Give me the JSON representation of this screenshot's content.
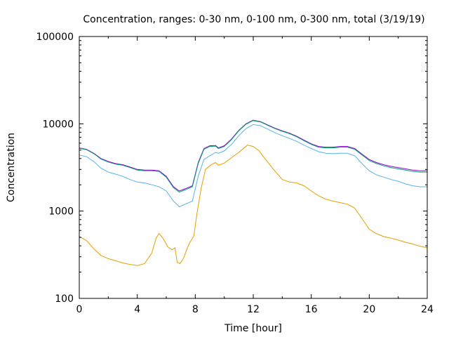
{
  "chart_data": {
    "type": "line",
    "title": "Concentration, ranges: 0-30 nm, 0-100 nm, 0-300 nm, total (3/19/19)",
    "xlabel": "Time [hour]",
    "ylabel": "Concentration",
    "xlim": [
      0,
      24
    ],
    "ylim": [
      100,
      100000
    ],
    "yscale": "log",
    "grid": false,
    "legend": "none",
    "xticks": [
      0,
      4,
      8,
      12,
      16,
      20,
      24
    ],
    "xtick_labels": [
      "0",
      "4",
      "8",
      "12",
      "16",
      "20",
      "24"
    ],
    "yticks": [
      100,
      1000,
      10000,
      100000
    ],
    "ytick_labels": [
      "100",
      "1000",
      "10000",
      "100000"
    ],
    "series": [
      {
        "color": "#e69f00",
        "points": [
          [
            0,
            510
          ],
          [
            0.5,
            460
          ],
          [
            1,
            370
          ],
          [
            1.5,
            310
          ],
          [
            2,
            285
          ],
          [
            2.5,
            270
          ],
          [
            3,
            255
          ],
          [
            3.5,
            245
          ],
          [
            4,
            238
          ],
          [
            4.5,
            250
          ],
          [
            5,
            330
          ],
          [
            5.3,
            490
          ],
          [
            5.5,
            555
          ],
          [
            5.8,
            480
          ],
          [
            6.1,
            390
          ],
          [
            6.4,
            360
          ],
          [
            6.6,
            380
          ],
          [
            6.75,
            260
          ],
          [
            6.95,
            250
          ],
          [
            7.2,
            290
          ],
          [
            7.4,
            360
          ],
          [
            7.6,
            430
          ],
          [
            7.9,
            520
          ],
          [
            8.1,
            900
          ],
          [
            8.4,
            1800
          ],
          [
            8.7,
            3000
          ],
          [
            9.1,
            3400
          ],
          [
            9.4,
            3600
          ],
          [
            9.6,
            3350
          ],
          [
            10,
            3550
          ],
          [
            10.5,
            4100
          ],
          [
            11,
            4700
          ],
          [
            11.6,
            5700
          ],
          [
            12,
            5500
          ],
          [
            12.4,
            4900
          ],
          [
            12.8,
            4000
          ],
          [
            13.4,
            3000
          ],
          [
            14,
            2300
          ],
          [
            14.5,
            2150
          ],
          [
            15,
            2100
          ],
          [
            15.5,
            1950
          ],
          [
            16,
            1700
          ],
          [
            16.5,
            1500
          ],
          [
            17,
            1370
          ],
          [
            17.5,
            1300
          ],
          [
            18,
            1250
          ],
          [
            18.5,
            1200
          ],
          [
            19,
            1080
          ],
          [
            19.5,
            820
          ],
          [
            20,
            620
          ],
          [
            20.5,
            550
          ],
          [
            21,
            510
          ],
          [
            21.5,
            490
          ],
          [
            22,
            465
          ],
          [
            22.5,
            440
          ],
          [
            23,
            420
          ],
          [
            23.5,
            395
          ],
          [
            24,
            380
          ]
        ]
      },
      {
        "color": "#56b4e9",
        "points": [
          [
            0,
            4400
          ],
          [
            0.5,
            4200
          ],
          [
            1,
            3700
          ],
          [
            1.5,
            3100
          ],
          [
            2,
            2800
          ],
          [
            2.5,
            2650
          ],
          [
            3,
            2500
          ],
          [
            3.5,
            2300
          ],
          [
            4,
            2150
          ],
          [
            4.5,
            2100
          ],
          [
            5,
            2000
          ],
          [
            5.5,
            1900
          ],
          [
            6,
            1700
          ],
          [
            6.5,
            1300
          ],
          [
            6.9,
            1120
          ],
          [
            7.3,
            1200
          ],
          [
            7.8,
            1300
          ],
          [
            8.2,
            2500
          ],
          [
            8.6,
            3900
          ],
          [
            9,
            4300
          ],
          [
            9.4,
            4700
          ],
          [
            9.6,
            4600
          ],
          [
            10,
            4900
          ],
          [
            10.5,
            5800
          ],
          [
            11,
            7300
          ],
          [
            11.5,
            8800
          ],
          [
            12,
            9800
          ],
          [
            12.5,
            9500
          ],
          [
            13,
            8700
          ],
          [
            13.5,
            7900
          ],
          [
            14,
            7300
          ],
          [
            14.5,
            6800
          ],
          [
            15,
            6300
          ],
          [
            15.5,
            5700
          ],
          [
            16,
            5200
          ],
          [
            16.5,
            4800
          ],
          [
            17,
            4600
          ],
          [
            17.5,
            4550
          ],
          [
            18,
            4600
          ],
          [
            18.5,
            4600
          ],
          [
            19,
            4300
          ],
          [
            19.5,
            3500
          ],
          [
            20,
            2900
          ],
          [
            20.5,
            2600
          ],
          [
            21,
            2450
          ],
          [
            21.5,
            2300
          ],
          [
            22,
            2200
          ],
          [
            22.5,
            2050
          ],
          [
            23,
            1950
          ],
          [
            23.5,
            1900
          ],
          [
            24,
            1900
          ]
        ]
      },
      {
        "color": "#9400d3",
        "points": [
          [
            0,
            5300
          ],
          [
            0.5,
            5100
          ],
          [
            1,
            4600
          ],
          [
            1.5,
            4000
          ],
          [
            2,
            3700
          ],
          [
            2.5,
            3500
          ],
          [
            3,
            3400
          ],
          [
            3.5,
            3200
          ],
          [
            4,
            3000
          ],
          [
            4.5,
            2950
          ],
          [
            5,
            2950
          ],
          [
            5.5,
            2900
          ],
          [
            6,
            2500
          ],
          [
            6.5,
            1900
          ],
          [
            6.9,
            1700
          ],
          [
            7.3,
            1800
          ],
          [
            7.8,
            1950
          ],
          [
            8.2,
            3600
          ],
          [
            8.6,
            5200
          ],
          [
            9,
            5600
          ],
          [
            9.4,
            5650
          ],
          [
            9.6,
            5300
          ],
          [
            10,
            5600
          ],
          [
            10.5,
            6700
          ],
          [
            11,
            8400
          ],
          [
            11.5,
            10000
          ],
          [
            12,
            11000
          ],
          [
            12.5,
            10600
          ],
          [
            13,
            9700
          ],
          [
            13.5,
            8900
          ],
          [
            14,
            8300
          ],
          [
            14.5,
            7800
          ],
          [
            15,
            7200
          ],
          [
            15.5,
            6500
          ],
          [
            16,
            5900
          ],
          [
            16.5,
            5500
          ],
          [
            17,
            5400
          ],
          [
            17.5,
            5400
          ],
          [
            18,
            5500
          ],
          [
            18.5,
            5500
          ],
          [
            19,
            5200
          ],
          [
            19.5,
            4500
          ],
          [
            20,
            3900
          ],
          [
            20.5,
            3600
          ],
          [
            21,
            3400
          ],
          [
            21.5,
            3250
          ],
          [
            22,
            3150
          ],
          [
            22.5,
            3050
          ],
          [
            23,
            2950
          ],
          [
            23.5,
            2900
          ],
          [
            24,
            2900
          ]
        ]
      },
      {
        "color": "#009e73",
        "points": [
          [
            0,
            5250
          ],
          [
            0.5,
            5050
          ],
          [
            1,
            4550
          ],
          [
            1.5,
            3950
          ],
          [
            2,
            3650
          ],
          [
            2.5,
            3450
          ],
          [
            3,
            3350
          ],
          [
            3.5,
            3150
          ],
          [
            4,
            2950
          ],
          [
            4.5,
            2900
          ],
          [
            5,
            2900
          ],
          [
            5.5,
            2850
          ],
          [
            6,
            2450
          ],
          [
            6.5,
            1850
          ],
          [
            6.9,
            1650
          ],
          [
            7.3,
            1750
          ],
          [
            7.8,
            1900
          ],
          [
            8.2,
            3500
          ],
          [
            8.6,
            5100
          ],
          [
            9,
            5500
          ],
          [
            9.4,
            5550
          ],
          [
            9.6,
            5200
          ],
          [
            10,
            5500
          ],
          [
            10.5,
            6600
          ],
          [
            11,
            8300
          ],
          [
            11.5,
            9900
          ],
          [
            12,
            10900
          ],
          [
            12.5,
            10500
          ],
          [
            13,
            9600
          ],
          [
            13.5,
            8800
          ],
          [
            14,
            8200
          ],
          [
            14.5,
            7700
          ],
          [
            15,
            7100
          ],
          [
            15.5,
            6400
          ],
          [
            16,
            5800
          ],
          [
            16.5,
            5400
          ],
          [
            17,
            5300
          ],
          [
            17.5,
            5300
          ],
          [
            18,
            5400
          ],
          [
            18.5,
            5400
          ],
          [
            19,
            5100
          ],
          [
            19.5,
            4400
          ],
          [
            20,
            3800
          ],
          [
            20.5,
            3500
          ],
          [
            21,
            3300
          ],
          [
            21.5,
            3150
          ],
          [
            22,
            3050
          ],
          [
            22.5,
            2950
          ],
          [
            23,
            2850
          ],
          [
            23.5,
            2800
          ],
          [
            24,
            2800
          ]
        ]
      }
    ]
  }
}
